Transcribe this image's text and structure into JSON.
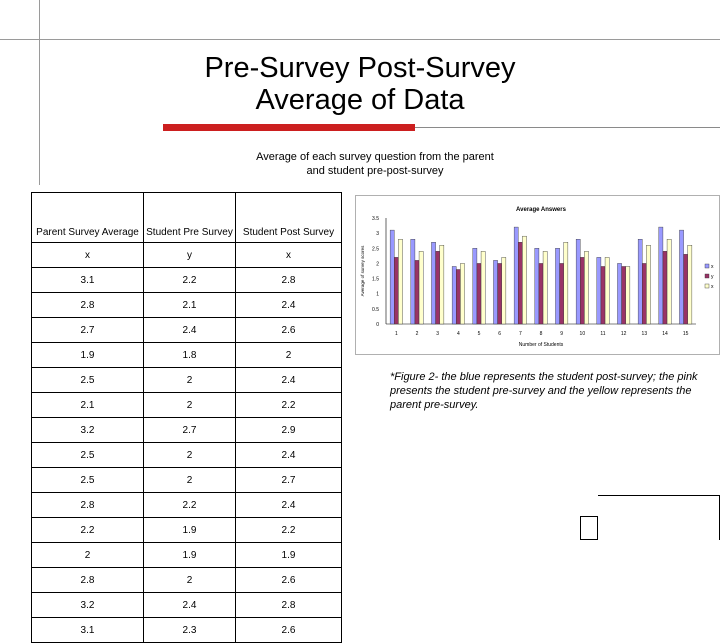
{
  "slide": {
    "title_line1": "Pre-Survey Post-Survey",
    "title_line2": "Average of Data",
    "subtitle_line1": "Average of each survey question from the parent",
    "subtitle_line2": "and student pre-post-survey",
    "caption": "*Figure 2- the blue represents the student post-survey; the pink presents the student pre-survey and the yellow represents the parent pre-survey.",
    "accent_color": "#cc1f1f"
  },
  "table": {
    "headers": [
      "Parent Survey Average",
      "Student Pre Survey",
      "Student Post Survey"
    ],
    "letters": [
      "x",
      "y",
      "x"
    ],
    "rows": [
      [
        "3.1",
        "2.2",
        "2.8"
      ],
      [
        "2.8",
        "2.1",
        "2.4"
      ],
      [
        "2.7",
        "2.4",
        "2.6"
      ],
      [
        "1.9",
        "1.8",
        "2"
      ],
      [
        "2.5",
        "2",
        "2.4"
      ],
      [
        "2.1",
        "2",
        "2.2"
      ],
      [
        "3.2",
        "2.7",
        "2.9"
      ],
      [
        "2.5",
        "2",
        "2.4"
      ],
      [
        "2.5",
        "2",
        "2.7"
      ],
      [
        "2.8",
        "2.2",
        "2.4"
      ],
      [
        "2.2",
        "1.9",
        "2.2"
      ],
      [
        "2",
        "1.9",
        "1.9"
      ],
      [
        "2.8",
        "2",
        "2.6"
      ],
      [
        "3.2",
        "2.4",
        "2.8"
      ],
      [
        "3.1",
        "2.3",
        "2.6"
      ]
    ]
  },
  "chart_data": {
    "type": "bar",
    "title": "Average Answers",
    "xlabel": "Number of Students",
    "ylabel": "Average of survey scores",
    "ylim": [
      0,
      3.5
    ],
    "yticks": [
      "0",
      "0.5",
      "1",
      "1.5",
      "2",
      "2.5",
      "3",
      "3.5"
    ],
    "categories": [
      "1",
      "2",
      "3",
      "4",
      "5",
      "6",
      "7",
      "8",
      "9",
      "10",
      "11",
      "12",
      "13",
      "14",
      "15"
    ],
    "legend": "right",
    "grid": false,
    "series": [
      {
        "name": "x",
        "color": "#9999ff",
        "values": [
          3.1,
          2.8,
          2.7,
          1.9,
          2.5,
          2.1,
          3.2,
          2.5,
          2.5,
          2.8,
          2.2,
          2.0,
          2.8,
          3.2,
          3.1
        ]
      },
      {
        "name": "y",
        "color": "#993366",
        "values": [
          2.2,
          2.1,
          2.4,
          1.8,
          2.0,
          2.0,
          2.7,
          2.0,
          2.0,
          2.2,
          1.9,
          1.9,
          2.0,
          2.4,
          2.3
        ]
      },
      {
        "name": "x",
        "color": "#ffffcc",
        "values": [
          2.8,
          2.4,
          2.6,
          2.0,
          2.4,
          2.2,
          2.9,
          2.4,
          2.7,
          2.4,
          2.2,
          1.9,
          2.6,
          2.8,
          2.6
        ]
      }
    ]
  }
}
